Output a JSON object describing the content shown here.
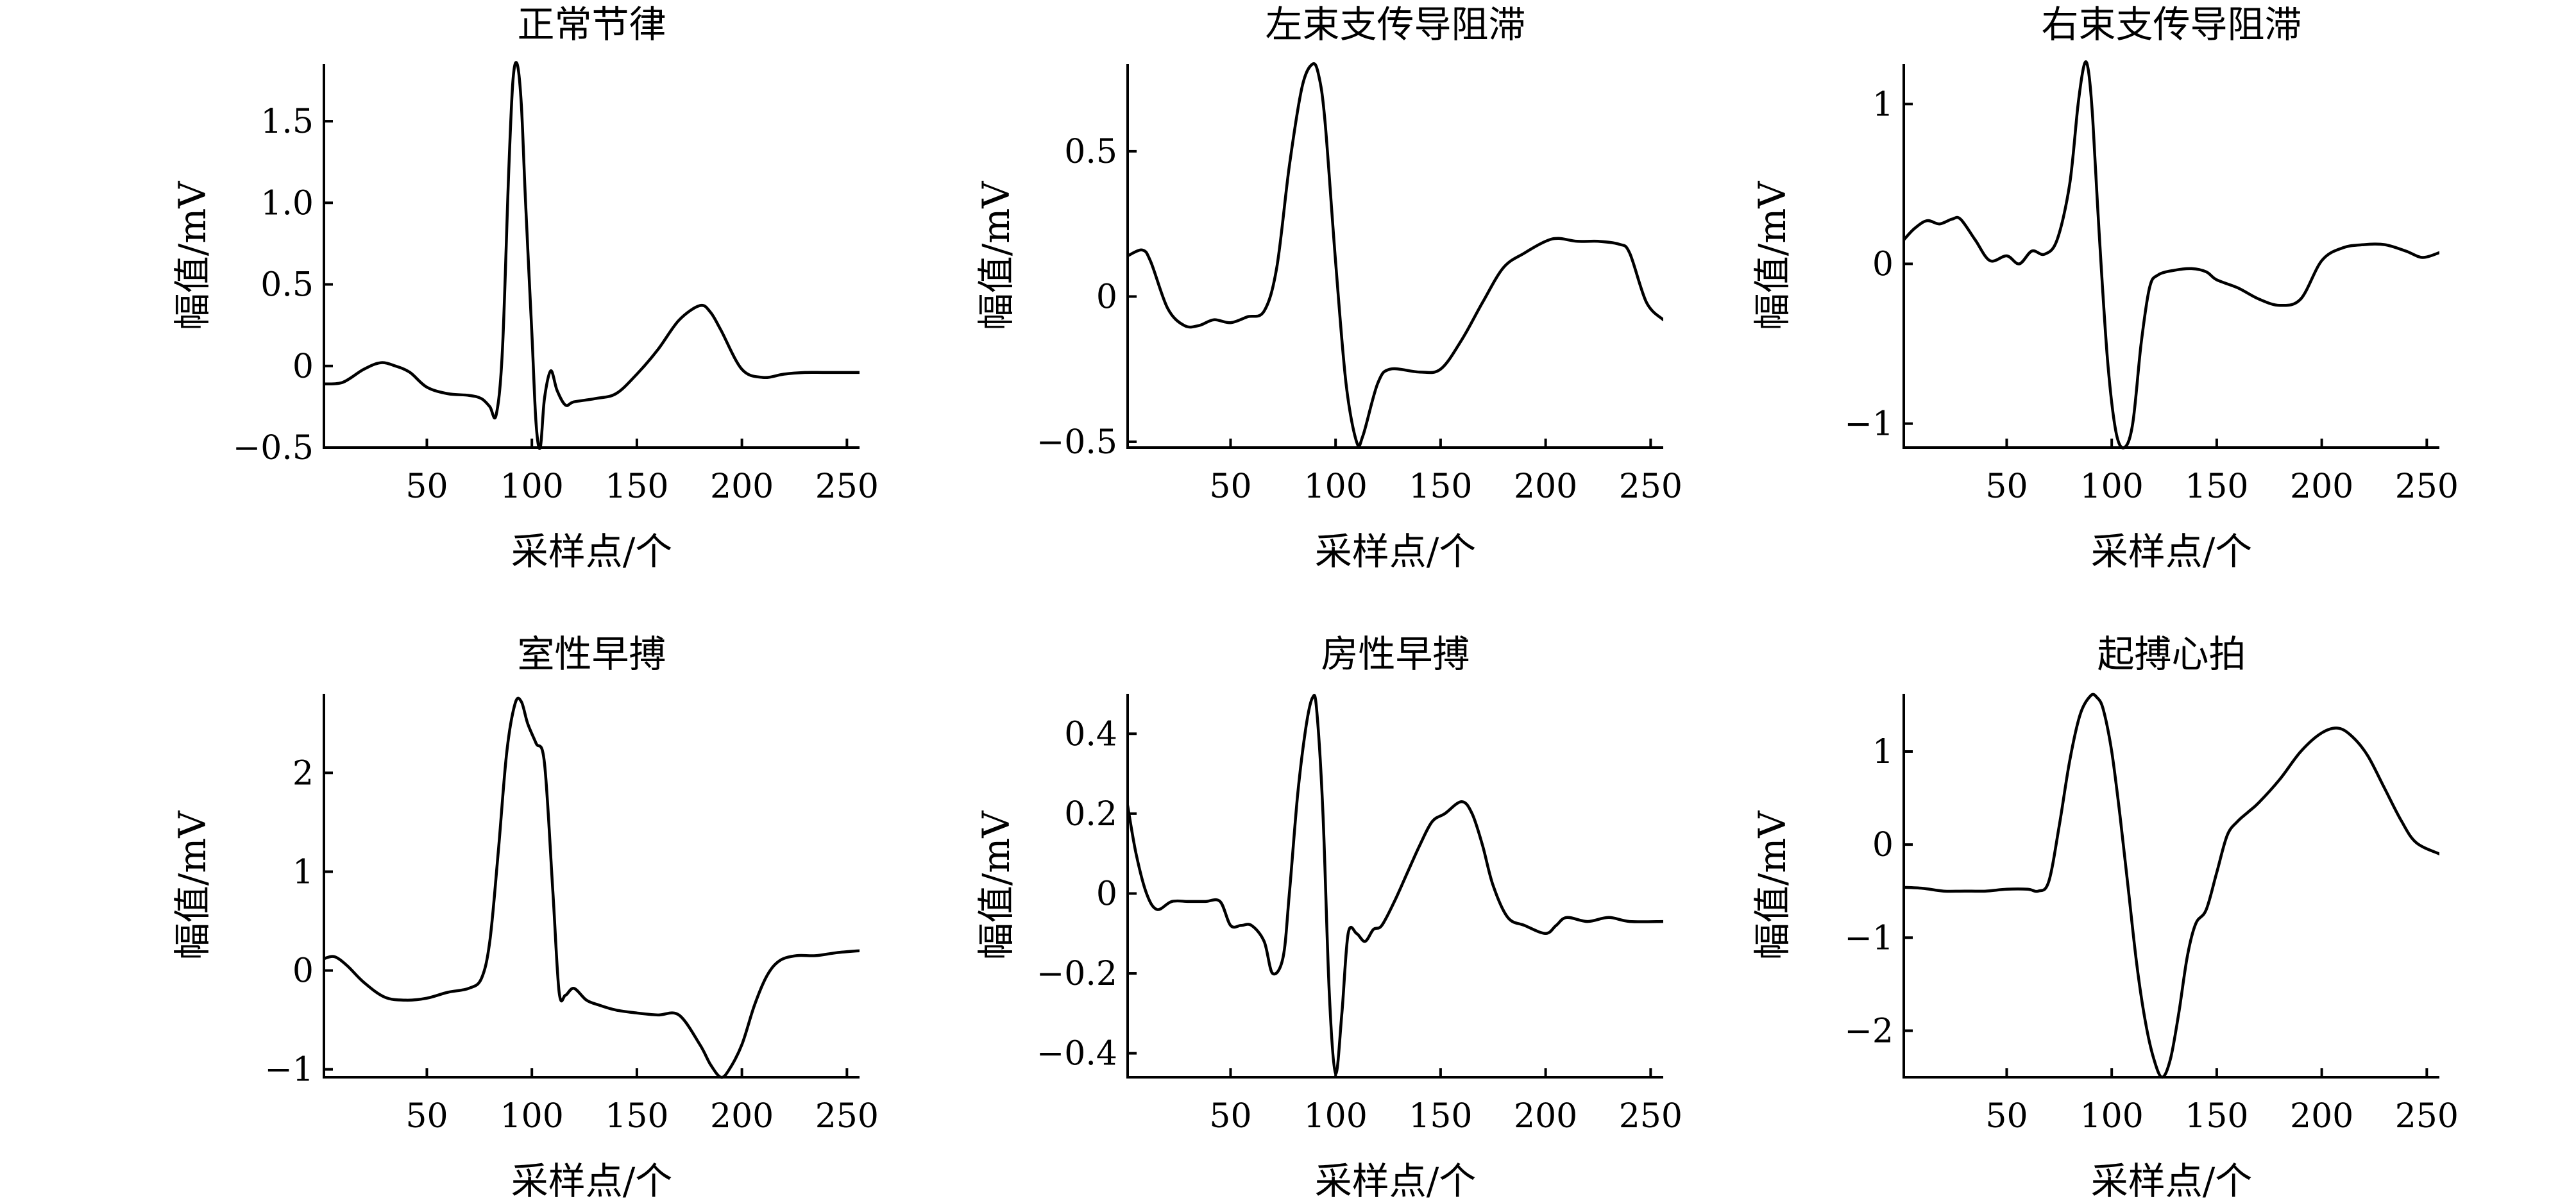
{
  "chart_data": [
    {
      "type": "line",
      "title": "正常节律",
      "xlabel": "采样点/个",
      "ylabel": "幅值/mV",
      "xlim": [
        1,
        256
      ],
      "ylim": [
        -0.5,
        1.85
      ],
      "xticks": [
        50,
        100,
        150,
        200,
        250
      ],
      "yticks": [
        -0.5,
        0,
        0.5,
        1.0,
        1.5
      ],
      "ytick_labels": [
        "−0.5",
        "0",
        "0.5",
        "1.0",
        "1.5"
      ],
      "grid": false,
      "series": [
        {
          "x": [
            1,
            10,
            20,
            28,
            35,
            42,
            50,
            60,
            70,
            76,
            80,
            83,
            86,
            89,
            91,
            93,
            95,
            97,
            100,
            102,
            104,
            106,
            109,
            112,
            116,
            120,
            130,
            140,
            150,
            160,
            170,
            180,
            185,
            190,
            200,
            210,
            220,
            230,
            240,
            256
          ],
          "y": [
            -0.11,
            -0.1,
            -0.02,
            0.02,
            0.0,
            -0.04,
            -0.13,
            -0.17,
            -0.18,
            -0.2,
            -0.25,
            -0.3,
            0.1,
            1.2,
            1.75,
            1.85,
            1.6,
            1.0,
            0.2,
            -0.35,
            -0.5,
            -0.2,
            -0.03,
            -0.15,
            -0.24,
            -0.22,
            -0.2,
            -0.17,
            -0.05,
            0.1,
            0.28,
            0.37,
            0.33,
            0.22,
            -0.02,
            -0.07,
            -0.05,
            -0.04,
            -0.04,
            -0.04
          ]
        }
      ]
    },
    {
      "type": "line",
      "title": "左束支传导阻滞",
      "xlabel": "采样点/个",
      "ylabel": "幅值/mV",
      "xlim": [
        1,
        256
      ],
      "ylim": [
        -0.52,
        0.8
      ],
      "xticks": [
        50,
        100,
        150,
        200,
        250
      ],
      "yticks": [
        -0.5,
        0,
        0.5
      ],
      "ytick_labels": [
        "−0.5",
        "0",
        "0.5"
      ],
      "grid": false,
      "series": [
        {
          "x": [
            1,
            8,
            12,
            20,
            28,
            35,
            42,
            50,
            58,
            66,
            72,
            78,
            84,
            89,
            92,
            95,
            100,
            105,
            110,
            113,
            120,
            126,
            140,
            150,
            160,
            170,
            180,
            190,
            200,
            206,
            215,
            225,
            235,
            240,
            248,
            256
          ],
          "y": [
            0.14,
            0.16,
            0.12,
            -0.04,
            -0.1,
            -0.1,
            -0.08,
            -0.09,
            -0.07,
            -0.05,
            0.1,
            0.45,
            0.72,
            0.8,
            0.76,
            0.6,
            0.12,
            -0.3,
            -0.5,
            -0.48,
            -0.3,
            -0.25,
            -0.26,
            -0.25,
            -0.15,
            -0.02,
            0.1,
            0.15,
            0.19,
            0.2,
            0.19,
            0.19,
            0.18,
            0.15,
            -0.02,
            -0.08
          ]
        }
      ]
    },
    {
      "type": "line",
      "title": "右束支传导阻滞",
      "xlabel": "采样点/个",
      "ylabel": "幅值/mV",
      "xlim": [
        1,
        256
      ],
      "ylim": [
        -1.15,
        1.25
      ],
      "xticks": [
        50,
        100,
        150,
        200,
        250
      ],
      "yticks": [
        -1,
        0,
        1
      ],
      "ytick_labels": [
        "−1",
        "0",
        "1"
      ],
      "grid": false,
      "series": [
        {
          "x": [
            1,
            6,
            12,
            18,
            24,
            28,
            35,
            42,
            50,
            56,
            62,
            68,
            74,
            80,
            84,
            87,
            89,
            91,
            94,
            98,
            102,
            106,
            110,
            114,
            118,
            122,
            130,
            138,
            145,
            150,
            160,
            170,
            180,
            190,
            200,
            210,
            220,
            230,
            240,
            248,
            256
          ],
          "y": [
            0.15,
            0.22,
            0.27,
            0.25,
            0.28,
            0.28,
            0.15,
            0.02,
            0.05,
            0.0,
            0.08,
            0.06,
            0.15,
            0.5,
            1.0,
            1.25,
            1.2,
            0.9,
            0.2,
            -0.6,
            -1.05,
            -1.15,
            -1.0,
            -0.5,
            -0.15,
            -0.07,
            -0.04,
            -0.03,
            -0.05,
            -0.1,
            -0.15,
            -0.22,
            -0.26,
            -0.22,
            0.02,
            0.1,
            0.12,
            0.12,
            0.08,
            0.04,
            0.07
          ]
        }
      ]
    },
    {
      "type": "line",
      "title": "室性早搏",
      "xlabel": "采样点/个",
      "ylabel": "幅值/mV",
      "xlim": [
        1,
        256
      ],
      "ylim": [
        -1.08,
        2.8
      ],
      "xticks": [
        50,
        100,
        150,
        200,
        250
      ],
      "yticks": [
        -1,
        0,
        1,
        2
      ],
      "ytick_labels": [
        "−1",
        "0",
        "1",
        "2"
      ],
      "grid": false,
      "series": [
        {
          "x": [
            1,
            6,
            12,
            20,
            30,
            40,
            50,
            60,
            70,
            76,
            80,
            84,
            88,
            92,
            95,
            98,
            102,
            106,
            110,
            113,
            116,
            120,
            126,
            132,
            140,
            150,
            160,
            170,
            180,
            185,
            190,
            194,
            200,
            206,
            212,
            218,
            226,
            235,
            245,
            256
          ],
          "y": [
            0.12,
            0.14,
            0.05,
            -0.12,
            -0.27,
            -0.3,
            -0.28,
            -0.22,
            -0.18,
            -0.08,
            0.3,
            1.2,
            2.2,
            2.7,
            2.72,
            2.5,
            2.3,
            2.1,
            0.8,
            -0.22,
            -0.25,
            -0.18,
            -0.3,
            -0.35,
            -0.4,
            -0.43,
            -0.45,
            -0.45,
            -0.75,
            -0.95,
            -1.08,
            -1.0,
            -0.75,
            -0.35,
            -0.05,
            0.1,
            0.15,
            0.15,
            0.18,
            0.2
          ]
        }
      ]
    },
    {
      "type": "line",
      "title": "房性早搏",
      "xlabel": "采样点/个",
      "ylabel": "幅值/mV",
      "xlim": [
        1,
        256
      ],
      "ylim": [
        -0.46,
        0.5
      ],
      "xticks": [
        50,
        100,
        150,
        200,
        250
      ],
      "yticks": [
        -0.4,
        -0.2,
        0,
        0.2,
        0.4
      ],
      "ytick_labels": [
        "−0.4",
        "−0.2",
        "0",
        "0.2",
        "0.4"
      ],
      "grid": false,
      "series": [
        {
          "x": [
            1,
            5,
            10,
            15,
            22,
            30,
            38,
            45,
            50,
            55,
            60,
            66,
            70,
            75,
            78,
            82,
            86,
            89,
            91,
            94,
            97,
            100,
            103,
            106,
            110,
            114,
            118,
            122,
            128,
            134,
            140,
            146,
            152,
            160,
            165,
            170,
            175,
            182,
            190,
            200,
            205,
            210,
            220,
            230,
            240,
            256
          ],
          "y": [
            0.22,
            0.1,
            0.0,
            -0.04,
            -0.02,
            -0.02,
            -0.02,
            -0.02,
            -0.08,
            -0.08,
            -0.08,
            -0.12,
            -0.2,
            -0.16,
            0.0,
            0.25,
            0.42,
            0.49,
            0.46,
            0.2,
            -0.25,
            -0.45,
            -0.3,
            -0.1,
            -0.1,
            -0.12,
            -0.09,
            -0.08,
            -0.02,
            0.05,
            0.12,
            0.18,
            0.2,
            0.23,
            0.2,
            0.12,
            0.02,
            -0.06,
            -0.08,
            -0.1,
            -0.08,
            -0.06,
            -0.07,
            -0.06,
            -0.07,
            -0.07
          ]
        }
      ]
    },
    {
      "type": "line",
      "title": "起搏心拍",
      "xlabel": "采样点/个",
      "ylabel": "幅值/mV",
      "xlim": [
        1,
        256
      ],
      "ylim": [
        -2.5,
        1.62
      ],
      "xticks": [
        50,
        100,
        150,
        200,
        250
      ],
      "yticks": [
        -2,
        -1,
        0,
        1
      ],
      "ytick_labels": [
        "−2",
        "−1",
        "0",
        "1"
      ],
      "grid": false,
      "series": [
        {
          "x": [
            1,
            10,
            20,
            30,
            40,
            50,
            60,
            65,
            70,
            75,
            80,
            85,
            90,
            93,
            96,
            100,
            104,
            108,
            112,
            116,
            120,
            124,
            128,
            132,
            136,
            140,
            145,
            150,
            155,
            160,
            165,
            170,
            180,
            190,
            200,
            208,
            215,
            222,
            230,
            238,
            245,
            256
          ],
          "y": [
            -0.46,
            -0.47,
            -0.5,
            -0.5,
            -0.5,
            -0.48,
            -0.48,
            -0.5,
            -0.4,
            0.2,
            0.9,
            1.4,
            1.6,
            1.58,
            1.45,
            1.0,
            0.3,
            -0.5,
            -1.3,
            -1.9,
            -2.3,
            -2.5,
            -2.3,
            -1.8,
            -1.2,
            -0.85,
            -0.7,
            -0.3,
            0.1,
            0.25,
            0.35,
            0.45,
            0.7,
            1.0,
            1.2,
            1.25,
            1.15,
            0.95,
            0.6,
            0.25,
            0.02,
            -0.1
          ]
        }
      ]
    }
  ]
}
